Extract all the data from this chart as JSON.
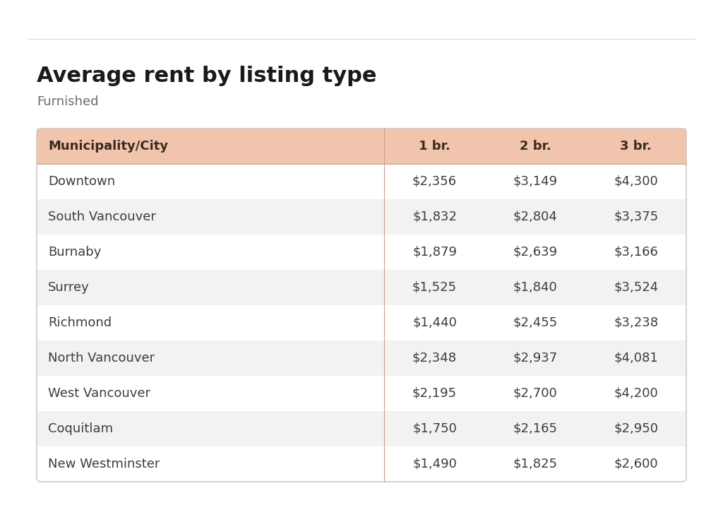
{
  "title": "Average rent by listing type",
  "subtitle": "Furnished",
  "header": [
    "Municipality/City",
    "1 br.",
    "2 br.",
    "3 br."
  ],
  "rows": [
    [
      "Downtown",
      "$2,356",
      "$3,149",
      "$4,300"
    ],
    [
      "South Vancouver",
      "$1,832",
      "$2,804",
      "$3,375"
    ],
    [
      "Burnaby",
      "$1,879",
      "$2,639",
      "$3,166"
    ],
    [
      "Surrey",
      "$1,525",
      "$1,840",
      "$3,524"
    ],
    [
      "Richmond",
      "$1,440",
      "$2,455",
      "$3,238"
    ],
    [
      "North Vancouver",
      "$2,348",
      "$2,937",
      "$4,081"
    ],
    [
      "West Vancouver",
      "$2,195",
      "$2,700",
      "$4,200"
    ],
    [
      "Coquitlam",
      "$1,750",
      "$2,165",
      "$2,950"
    ],
    [
      "New Westminster",
      "$1,490",
      "$1,825",
      "$2,600"
    ]
  ],
  "header_bg_color": "#f0c4ad",
  "odd_row_bg_color": "#f2f2f2",
  "even_row_bg_color": "#ffffff",
  "header_text_color": "#3d2b1f",
  "body_text_color": "#3d3d3d",
  "title_color": "#1a1a1a",
  "subtitle_color": "#6a6a6a",
  "fig_bg_color": "#ffffff",
  "top_line_color": "#dddddd",
  "separator_color": "#c8a090",
  "border_color": "#d8c8c0",
  "title_fontsize": 22,
  "subtitle_fontsize": 13,
  "header_fontsize": 13,
  "body_fontsize": 13
}
